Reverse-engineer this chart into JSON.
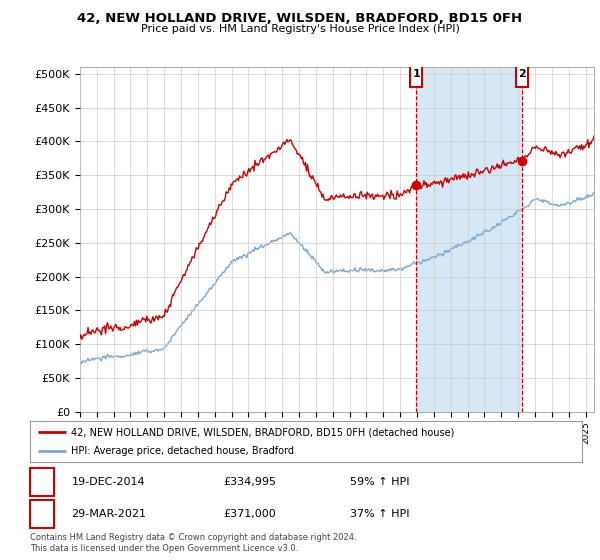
{
  "title": "42, NEW HOLLAND DRIVE, WILSDEN, BRADFORD, BD15 0FH",
  "subtitle": "Price paid vs. HM Land Registry's House Price Index (HPI)",
  "ylabel_ticks": [
    "£0",
    "£50K",
    "£100K",
    "£150K",
    "£200K",
    "£250K",
    "£300K",
    "£350K",
    "£400K",
    "£450K",
    "£500K"
  ],
  "ytick_values": [
    0,
    50000,
    100000,
    150000,
    200000,
    250000,
    300000,
    350000,
    400000,
    450000,
    500000
  ],
  "ylim": [
    0,
    510000
  ],
  "xlim_start": 1995.0,
  "xlim_end": 2025.5,
  "hpi_color": "#7aa8d2",
  "price_color": "#cc0000",
  "shade_color": "#d6e8f5",
  "marker1_date": 2014.96,
  "marker1_price": 334995,
  "marker1_label": "19-DEC-2014",
  "marker1_value_str": "£334,995",
  "marker1_pct": "59% ↑ HPI",
  "marker2_date": 2021.24,
  "marker2_price": 371000,
  "marker2_label": "29-MAR-2021",
  "marker2_value_str": "£371,000",
  "marker2_pct": "37% ↑ HPI",
  "legend_line1": "42, NEW HOLLAND DRIVE, WILSDEN, BRADFORD, BD15 0FH (detached house)",
  "legend_line2": "HPI: Average price, detached house, Bradford",
  "footnote": "Contains HM Land Registry data © Crown copyright and database right 2024.\nThis data is licensed under the Open Government Licence v3.0.",
  "background_color": "#ffffff",
  "grid_color": "#cccccc"
}
